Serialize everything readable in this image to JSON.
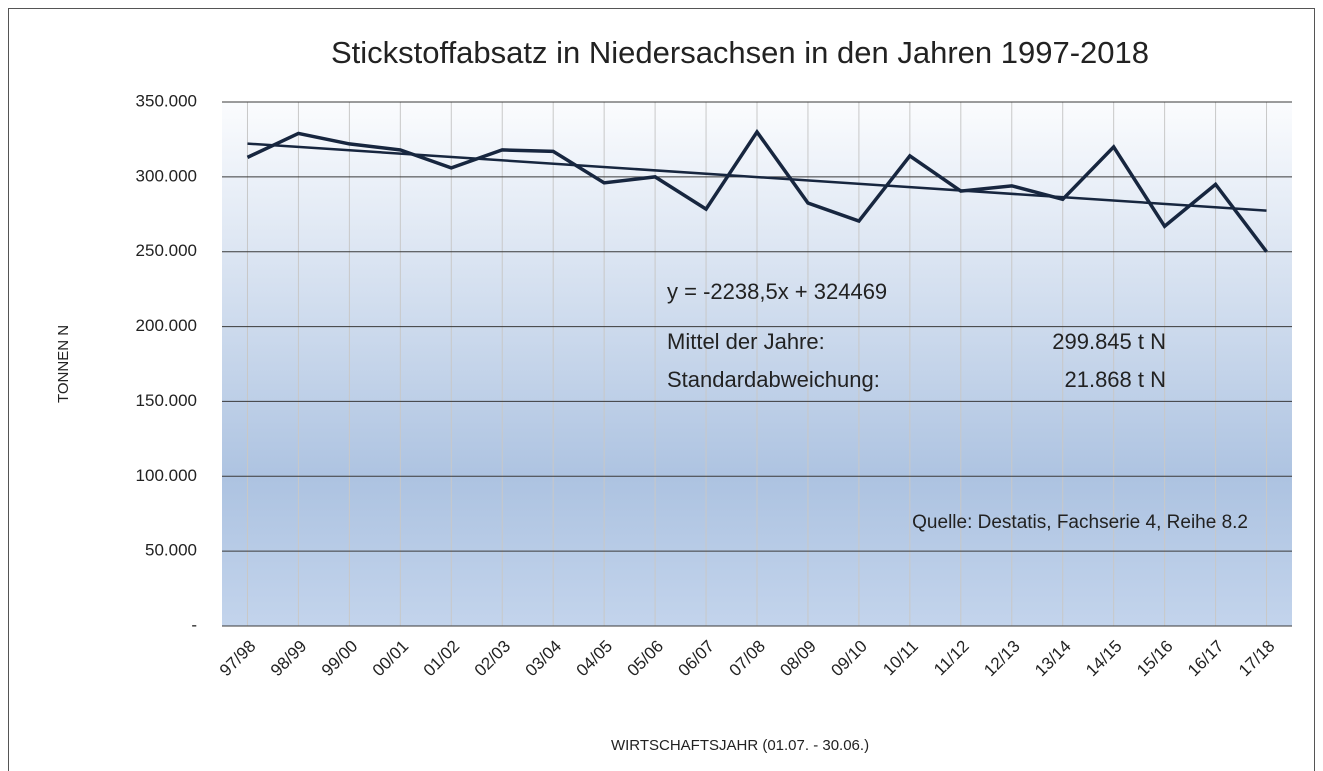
{
  "chart_data": {
    "type": "line",
    "title": "Stickstoffabsatz in Niedersachsen in den Jahren 1997-2018",
    "x_label": "WIRTSCHAFTSJAHR (01.07. - 30.06.)",
    "y_label": "TONNEN N",
    "categories": [
      "97/98",
      "98/99",
      "99/00",
      "00/01",
      "01/02",
      "02/03",
      "03/04",
      "04/05",
      "05/06",
      "06/07",
      "07/08",
      "08/09",
      "09/10",
      "10/11",
      "11/12",
      "12/13",
      "13/14",
      "14/15",
      "15/16",
      "16/17",
      "17/18"
    ],
    "series": [
      {
        "name": "Stickstoffabsatz",
        "color": "#17263f",
        "values": [
          313000,
          329000,
          322000,
          318000,
          306000,
          318000,
          317000,
          296000,
          300000,
          278500,
          330000,
          282500,
          270500,
          314000,
          290500,
          294000,
          285000,
          320000,
          267000,
          295000,
          250000
        ]
      }
    ],
    "trendline": {
      "slope": -2238.5,
      "intercept": 324469,
      "label": "y = -2238,5x + 324469",
      "color": "#17263f"
    },
    "annotations": {
      "mean_label": "Mittel der Jahre:",
      "mean_value": "299.845 t N",
      "std_label": "Standardabweichung:",
      "std_value": "21.868 t N",
      "source": "Quelle: Destatis, Fachserie 4, Reihe 8.2"
    },
    "ylim": [
      0,
      350000
    ],
    "yticks": [
      {
        "value": 0,
        "label": "-"
      },
      {
        "value": 50000,
        "label": "50.000"
      },
      {
        "value": 100000,
        "label": "100.000"
      },
      {
        "value": 150000,
        "label": "150.000"
      },
      {
        "value": 200000,
        "label": "200.000"
      },
      {
        "value": 250000,
        "label": "250.000"
      },
      {
        "value": 300000,
        "label": "300.000"
      },
      {
        "value": 350000,
        "label": "350.000"
      }
    ],
    "grid": true
  }
}
